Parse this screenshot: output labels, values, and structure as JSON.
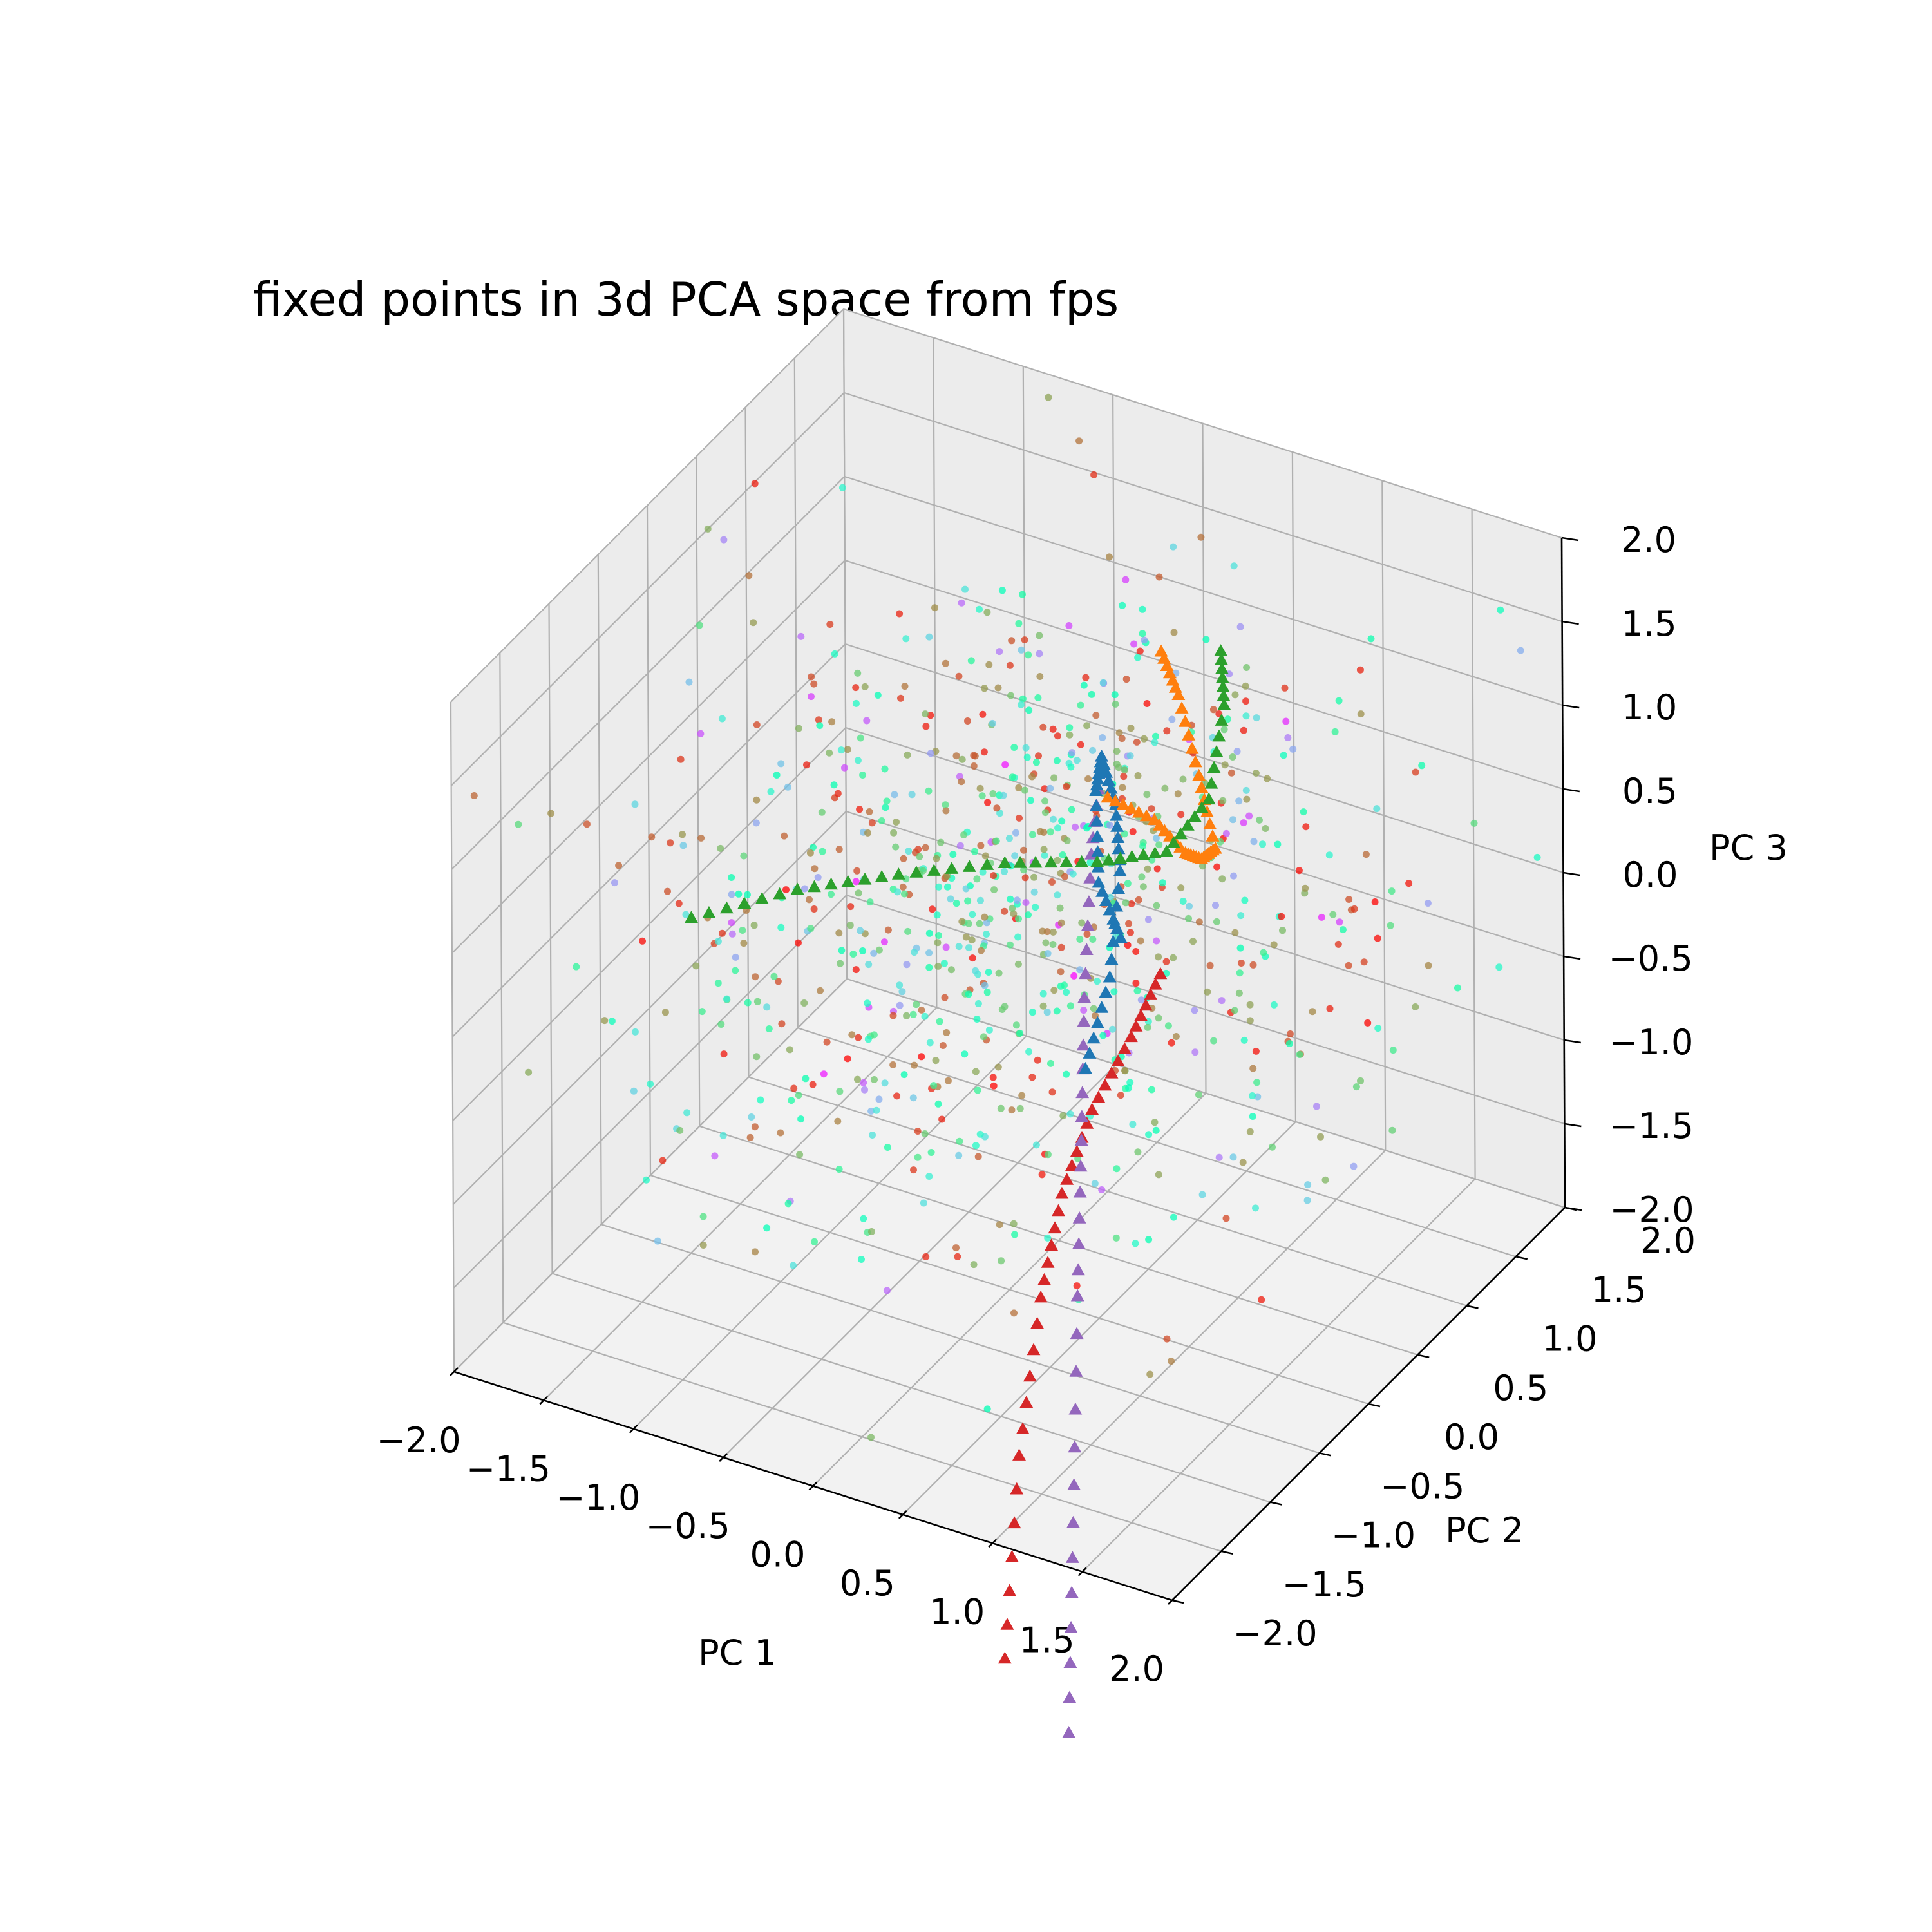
{
  "chart_data": {
    "type": "scatter",
    "title": "fixed points in 3d PCA space from fps",
    "xlabel": "PC 1",
    "ylabel": "PC 2",
    "zlabel": "PC 3",
    "xlim": [
      -2.0,
      2.0
    ],
    "ylim": [
      -2.0,
      2.0
    ],
    "zlim": [
      -2.0,
      2.0
    ],
    "ticks": [
      -2.0,
      -1.5,
      -1.0,
      -0.5,
      0.0,
      0.5,
      1.0,
      1.5,
      2.0
    ],
    "tick_labels": [
      "−2.0",
      "−1.5",
      "−1.0",
      "−0.5",
      "0.0",
      "0.5",
      "1.0",
      "1.5",
      "2.0"
    ],
    "grid": true,
    "pane_colors": {
      "side": "#ececec",
      "floor": "#f2f2f2"
    },
    "fixed_points": {
      "marker": "circle",
      "colormap": "rainbow",
      "count": 900,
      "seed": 7,
      "cloud_center": [
        0.0,
        0.2,
        0.2
      ],
      "cloud_spread": [
        1.1,
        1.2,
        1.0
      ]
    },
    "series": [
      {
        "color": "#d62728",
        "marker": "triangle",
        "points": [
          [
            0.9,
            -1.7,
            -2.9
          ],
          [
            0.6,
            -1.0,
            -2.2
          ],
          [
            0.45,
            -0.5,
            -1.6
          ],
          [
            0.35,
            -0.1,
            -1.25
          ],
          [
            0.3,
            0.3,
            -1.0
          ],
          [
            0.3,
            0.7,
            -0.8
          ],
          [
            0.3,
            1.0,
            -0.6
          ]
        ]
      },
      {
        "color": "#9467bd",
        "marker": "triangle",
        "points": [
          [
            1.2,
            -1.6,
            -3.3
          ],
          [
            0.9,
            -1.0,
            -2.5
          ],
          [
            0.6,
            -0.4,
            -1.6
          ],
          [
            0.35,
            0.1,
            -1.05
          ],
          [
            0.15,
            0.5,
            -0.5
          ],
          [
            0.0,
            0.85,
            0.1
          ],
          [
            -0.05,
            1.05,
            0.55
          ]
        ]
      },
      {
        "color": "#1f77b4",
        "marker": "triangle",
        "points": [
          [
            0.1,
            0.6,
            -1.0
          ],
          [
            0.1,
            0.85,
            -0.6
          ],
          [
            0.05,
            1.05,
            -0.1
          ],
          [
            0.0,
            1.1,
            0.25
          ],
          [
            -0.05,
            1.05,
            0.55
          ],
          [
            0.0,
            0.9,
            0.45
          ],
          [
            0.15,
            0.65,
            0.1
          ],
          [
            0.3,
            0.6,
            -0.15
          ]
        ]
      },
      {
        "color": "#ff7f0e",
        "marker": "triangle",
        "points": [
          [
            -0.1,
            1.2,
            0.2
          ],
          [
            0.05,
            1.4,
            0.0
          ],
          [
            0.25,
            1.35,
            -0.1
          ],
          [
            0.45,
            1.15,
            0.05
          ],
          [
            0.5,
            1.2,
            0.1
          ],
          [
            0.3,
            1.4,
            0.35
          ],
          [
            0.05,
            1.65,
            0.6
          ],
          [
            -0.1,
            1.75,
            0.75
          ]
        ]
      },
      {
        "color": "#2ca02c",
        "marker": "triangle",
        "points": [
          [
            -1.6,
            -0.3,
            -0.15
          ],
          [
            -1.2,
            0.05,
            -0.05
          ],
          [
            -0.8,
            0.35,
            0.0
          ],
          [
            -0.4,
            0.7,
            0.0
          ],
          [
            -0.05,
            1.0,
            -0.05
          ],
          [
            0.2,
            1.25,
            -0.05
          ],
          [
            0.3,
            1.5,
            0.15
          ],
          [
            0.25,
            1.75,
            0.55
          ],
          [
            0.15,
            1.9,
            0.75
          ]
        ]
      }
    ]
  }
}
